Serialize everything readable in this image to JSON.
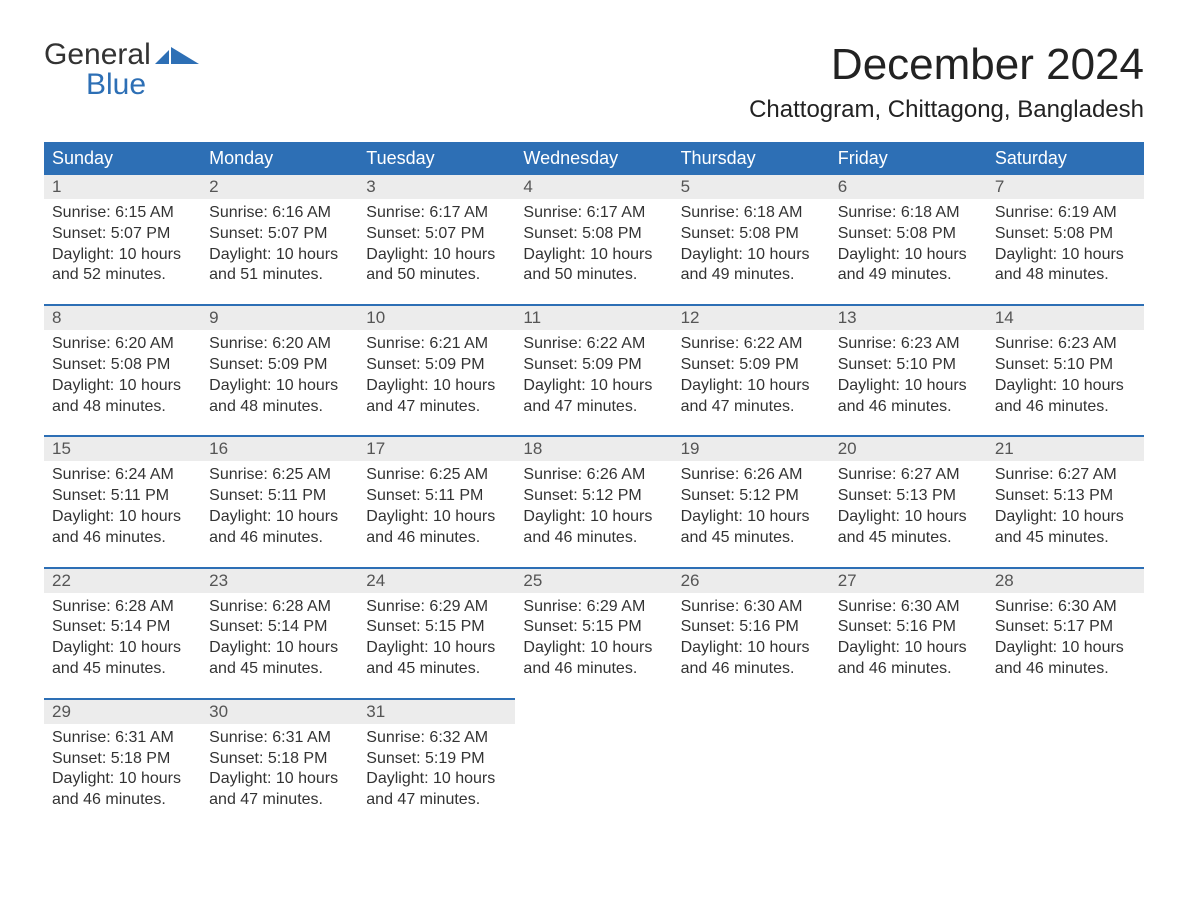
{
  "logo": {
    "word1": "General",
    "word2": "Blue",
    "accent_color": "#2d6fb5"
  },
  "title": "December 2024",
  "location": "Chattogram, Chittagong, Bangladesh",
  "colors": {
    "header_bg": "#2d6fb5",
    "header_text": "#ffffff",
    "daynum_bg": "#ececec",
    "week_divider": "#2d6fb5",
    "text": "#333333",
    "title_text": "#222222"
  },
  "typography": {
    "title_fontsize": 44,
    "location_fontsize": 24,
    "weekday_fontsize": 18,
    "daynum_fontsize": 17,
    "body_fontsize": 16
  },
  "weekdays": [
    "Sunday",
    "Monday",
    "Tuesday",
    "Wednesday",
    "Thursday",
    "Friday",
    "Saturday"
  ],
  "days": [
    {
      "n": 1,
      "sunrise": "6:15 AM",
      "sunset": "5:07 PM",
      "daylight": "10 hours and 52 minutes."
    },
    {
      "n": 2,
      "sunrise": "6:16 AM",
      "sunset": "5:07 PM",
      "daylight": "10 hours and 51 minutes."
    },
    {
      "n": 3,
      "sunrise": "6:17 AM",
      "sunset": "5:07 PM",
      "daylight": "10 hours and 50 minutes."
    },
    {
      "n": 4,
      "sunrise": "6:17 AM",
      "sunset": "5:08 PM",
      "daylight": "10 hours and 50 minutes."
    },
    {
      "n": 5,
      "sunrise": "6:18 AM",
      "sunset": "5:08 PM",
      "daylight": "10 hours and 49 minutes."
    },
    {
      "n": 6,
      "sunrise": "6:18 AM",
      "sunset": "5:08 PM",
      "daylight": "10 hours and 49 minutes."
    },
    {
      "n": 7,
      "sunrise": "6:19 AM",
      "sunset": "5:08 PM",
      "daylight": "10 hours and 48 minutes."
    },
    {
      "n": 8,
      "sunrise": "6:20 AM",
      "sunset": "5:08 PM",
      "daylight": "10 hours and 48 minutes."
    },
    {
      "n": 9,
      "sunrise": "6:20 AM",
      "sunset": "5:09 PM",
      "daylight": "10 hours and 48 minutes."
    },
    {
      "n": 10,
      "sunrise": "6:21 AM",
      "sunset": "5:09 PM",
      "daylight": "10 hours and 47 minutes."
    },
    {
      "n": 11,
      "sunrise": "6:22 AM",
      "sunset": "5:09 PM",
      "daylight": "10 hours and 47 minutes."
    },
    {
      "n": 12,
      "sunrise": "6:22 AM",
      "sunset": "5:09 PM",
      "daylight": "10 hours and 47 minutes."
    },
    {
      "n": 13,
      "sunrise": "6:23 AM",
      "sunset": "5:10 PM",
      "daylight": "10 hours and 46 minutes."
    },
    {
      "n": 14,
      "sunrise": "6:23 AM",
      "sunset": "5:10 PM",
      "daylight": "10 hours and 46 minutes."
    },
    {
      "n": 15,
      "sunrise": "6:24 AM",
      "sunset": "5:11 PM",
      "daylight": "10 hours and 46 minutes."
    },
    {
      "n": 16,
      "sunrise": "6:25 AM",
      "sunset": "5:11 PM",
      "daylight": "10 hours and 46 minutes."
    },
    {
      "n": 17,
      "sunrise": "6:25 AM",
      "sunset": "5:11 PM",
      "daylight": "10 hours and 46 minutes."
    },
    {
      "n": 18,
      "sunrise": "6:26 AM",
      "sunset": "5:12 PM",
      "daylight": "10 hours and 46 minutes."
    },
    {
      "n": 19,
      "sunrise": "6:26 AM",
      "sunset": "5:12 PM",
      "daylight": "10 hours and 45 minutes."
    },
    {
      "n": 20,
      "sunrise": "6:27 AM",
      "sunset": "5:13 PM",
      "daylight": "10 hours and 45 minutes."
    },
    {
      "n": 21,
      "sunrise": "6:27 AM",
      "sunset": "5:13 PM",
      "daylight": "10 hours and 45 minutes."
    },
    {
      "n": 22,
      "sunrise": "6:28 AM",
      "sunset": "5:14 PM",
      "daylight": "10 hours and 45 minutes."
    },
    {
      "n": 23,
      "sunrise": "6:28 AM",
      "sunset": "5:14 PM",
      "daylight": "10 hours and 45 minutes."
    },
    {
      "n": 24,
      "sunrise": "6:29 AM",
      "sunset": "5:15 PM",
      "daylight": "10 hours and 45 minutes."
    },
    {
      "n": 25,
      "sunrise": "6:29 AM",
      "sunset": "5:15 PM",
      "daylight": "10 hours and 46 minutes."
    },
    {
      "n": 26,
      "sunrise": "6:30 AM",
      "sunset": "5:16 PM",
      "daylight": "10 hours and 46 minutes."
    },
    {
      "n": 27,
      "sunrise": "6:30 AM",
      "sunset": "5:16 PM",
      "daylight": "10 hours and 46 minutes."
    },
    {
      "n": 28,
      "sunrise": "6:30 AM",
      "sunset": "5:17 PM",
      "daylight": "10 hours and 46 minutes."
    },
    {
      "n": 29,
      "sunrise": "6:31 AM",
      "sunset": "5:18 PM",
      "daylight": "10 hours and 46 minutes."
    },
    {
      "n": 30,
      "sunrise": "6:31 AM",
      "sunset": "5:18 PM",
      "daylight": "10 hours and 47 minutes."
    },
    {
      "n": 31,
      "sunrise": "6:32 AM",
      "sunset": "5:19 PM",
      "daylight": "10 hours and 47 minutes."
    }
  ],
  "labels": {
    "sunrise_prefix": "Sunrise: ",
    "sunset_prefix": "Sunset: ",
    "daylight_prefix": "Daylight: "
  },
  "layout": {
    "start_weekday_index": 0,
    "total_cells": 35
  }
}
